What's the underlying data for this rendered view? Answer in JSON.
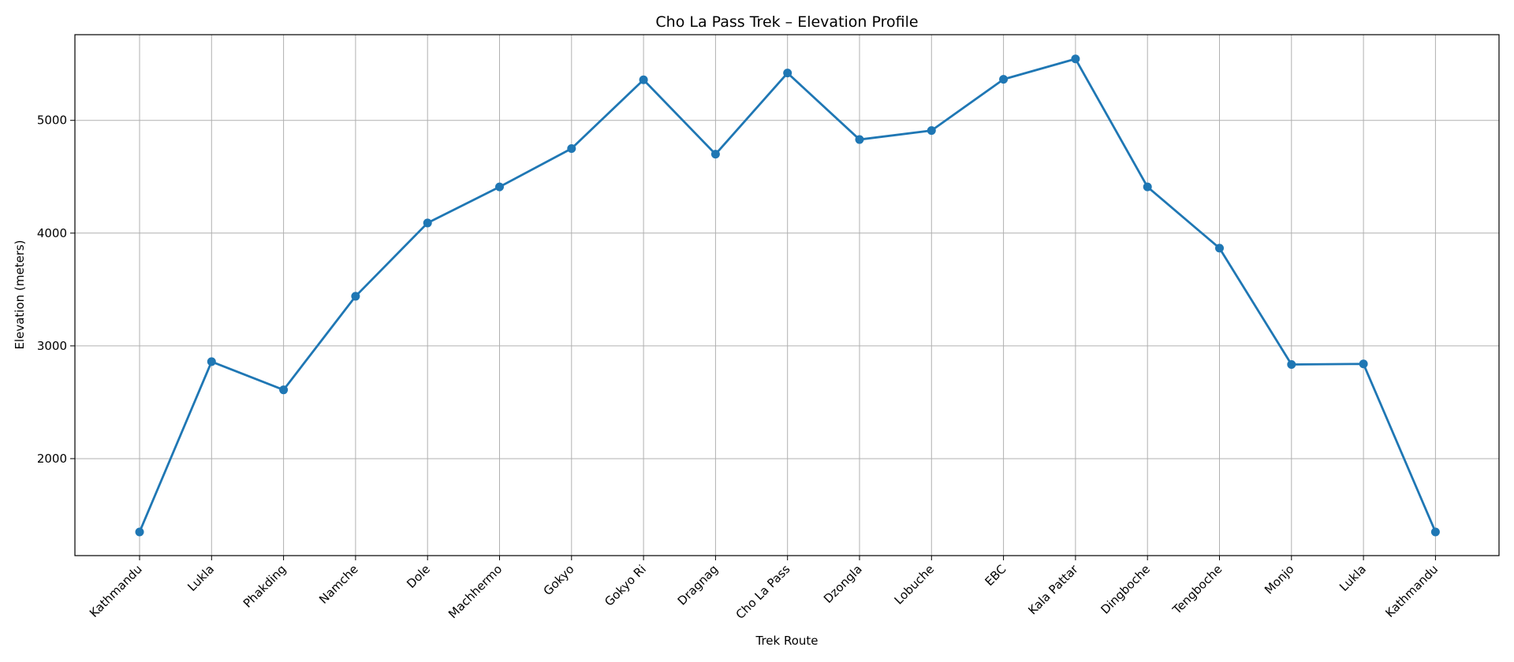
{
  "chart_data": {
    "type": "line",
    "title": "Cho La Pass Trek – Elevation Profile",
    "xlabel": "Trek Route",
    "ylabel": "Elevation (meters)",
    "categories": [
      "Kathmandu",
      "Lukla",
      "Phakding",
      "Namche",
      "Dole",
      "Machhermo",
      "Gokyo",
      "Gokyo Ri",
      "Dragnag",
      "Cho La Pass",
      "Dzongla",
      "Lobuche",
      "EBC",
      "Kala Pattar",
      "Dingboche",
      "Tengboche",
      "Monjo",
      "Lukla",
      "Kathmandu"
    ],
    "series": [
      {
        "name": "Elevation",
        "color": "#1f77b4",
        "marker": "circle",
        "values": [
          1350,
          2860,
          2610,
          3440,
          4090,
          4410,
          4750,
          5360,
          4700,
          5420,
          4830,
          4910,
          5364,
          5545,
          4410,
          3867,
          2835,
          2840,
          1350
        ]
      }
    ],
    "yticks": [
      2000,
      3000,
      4000,
      5000
    ],
    "ylim": [
      1140,
      5760
    ],
    "grid": true,
    "legend": null,
    "xtick_rotation": 45
  }
}
